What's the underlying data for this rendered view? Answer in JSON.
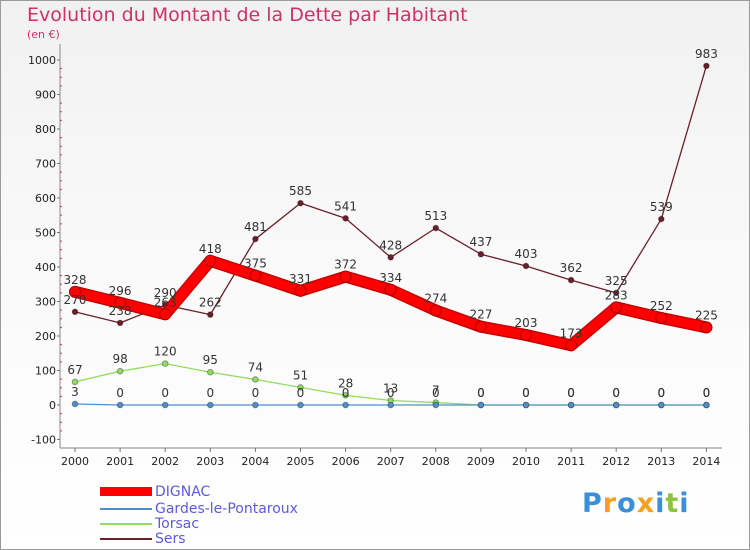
{
  "title": "Evolution du Montant de la Dette par Habitant",
  "subtitle": "(en €)",
  "logo_text": "Proxiti",
  "chart_data": {
    "type": "line",
    "title": "Evolution du Montant de la Dette par Habitant",
    "subtitle": "(en €)",
    "xlabel": "",
    "ylabel": "",
    "x": [
      2000,
      2001,
      2002,
      2003,
      2004,
      2005,
      2006,
      2007,
      2008,
      2009,
      2010,
      2011,
      2012,
      2013,
      2014
    ],
    "x_tick_labels": [
      "2000",
      "2001",
      "2002",
      "2003",
      "2004",
      "2005",
      "2006",
      "2007",
      "2008",
      "2009",
      "2010",
      "2011",
      "2012",
      "2013",
      "2014"
    ],
    "ylim": [
      -100,
      1000
    ],
    "y_ticks": [
      -100,
      0,
      100,
      200,
      300,
      400,
      500,
      600,
      700,
      800,
      900,
      1000
    ],
    "y_tick_labels": [
      "-100",
      "0",
      "100",
      "200",
      "300",
      "400",
      "500",
      "600",
      "700",
      "800",
      "900",
      "1000"
    ],
    "grid": false,
    "legend_position": "bottom-left",
    "series": [
      {
        "name": "DIGNAC",
        "color": "#ff0000",
        "values": [
          328,
          296,
          263,
          418,
          375,
          331,
          372,
          334,
          274,
          227,
          203,
          173,
          283,
          252,
          225
        ],
        "labels": [
          "328",
          "296",
          "263",
          "418",
          "375",
          "331",
          "372",
          "334",
          "274",
          "227",
          "203",
          "173",
          "283",
          "252",
          "225"
        ]
      },
      {
        "name": "Gardes-le-Pontaroux",
        "color": "#4f8fcc",
        "values": [
          3,
          0,
          0,
          0,
          0,
          0,
          0,
          0,
          0,
          0,
          0,
          0,
          0,
          0,
          0
        ],
        "labels": [
          "3",
          "0",
          "0",
          "0",
          "0",
          "0",
          "0",
          "0",
          "0",
          "0",
          "0",
          "0",
          "0",
          "0",
          "0"
        ]
      },
      {
        "name": "Torsac",
        "color": "#90dd60",
        "values": [
          67,
          98,
          120,
          95,
          74,
          51,
          28,
          13,
          7,
          0,
          0,
          0,
          0,
          0,
          0
        ],
        "labels": [
          "67",
          "98",
          "120",
          "95",
          "74",
          "51",
          "28",
          "13",
          "7",
          "0",
          "0",
          "0",
          "0",
          "0",
          "0"
        ]
      },
      {
        "name": "Sers",
        "color": "#6b1f2a",
        "values": [
          270,
          238,
          290,
          262,
          481,
          585,
          541,
          428,
          513,
          437,
          403,
          362,
          325,
          539,
          983
        ],
        "labels": [
          "270",
          "238",
          "290",
          "262",
          "481",
          "585",
          "541",
          "428",
          "513",
          "437",
          "403",
          "362",
          "325",
          "539",
          "983"
        ]
      }
    ]
  }
}
